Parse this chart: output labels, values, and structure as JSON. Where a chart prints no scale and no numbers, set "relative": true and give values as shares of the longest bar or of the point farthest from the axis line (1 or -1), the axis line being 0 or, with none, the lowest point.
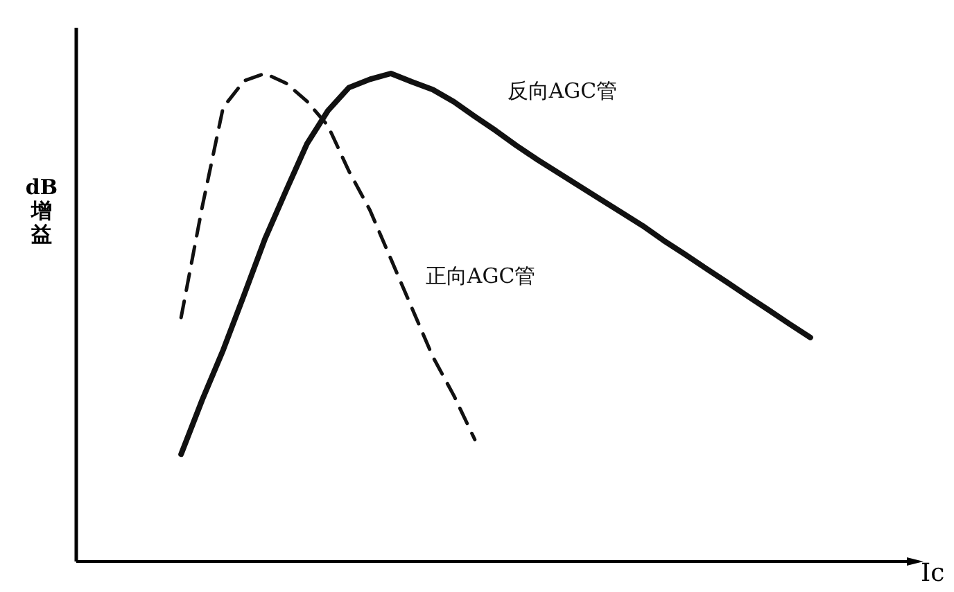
{
  "chart_data": {
    "type": "line",
    "relative": true,
    "xlabel": "Ic",
    "ylabel": "dB 增益",
    "categories": [
      null,
      null,
      null,
      null,
      null,
      null,
      null,
      null,
      null,
      null,
      null,
      null,
      null,
      null,
      null,
      null,
      null,
      null,
      null,
      null,
      null,
      null,
      null,
      null,
      null,
      null,
      null,
      null,
      null,
      null,
      null,
      null,
      null,
      null,
      null,
      null,
      null,
      null,
      null,
      null,
      null
    ],
    "series": [
      {
        "name": "正向AGC管",
        "color": "#111111",
        "line_style": "dashed",
        "values": [
          null,
          null,
          null,
          null,
          null,
          0.5,
          0.726,
          0.93,
          0.985,
          1,
          0.98,
          0.943,
          0.893,
          0.8,
          0.72,
          0.62,
          0.52,
          0.42,
          0.34,
          0.25,
          null,
          null,
          null,
          null,
          null,
          null,
          null,
          null,
          null,
          null,
          null,
          null,
          null,
          null,
          null,
          null,
          null,
          null,
          null,
          null,
          null
        ]
      },
      {
        "name": "反向AGC管",
        "color": "#111111",
        "line_style": "solid",
        "values": [
          null,
          null,
          null,
          null,
          null,
          0.22,
          0.331,
          0.433,
          0.546,
          0.661,
          0.76,
          0.856,
          0.924,
          0.971,
          0.988,
          1,
          0.983,
          0.967,
          0.942,
          0.912,
          0.883,
          0.852,
          0.823,
          0.796,
          0.769,
          0.742,
          0.715,
          0.688,
          0.658,
          0.63,
          0.601,
          0.573,
          0.544,
          0.516,
          0.487,
          0.459,
          null,
          null,
          null,
          null,
          null
        ]
      }
    ]
  }
}
